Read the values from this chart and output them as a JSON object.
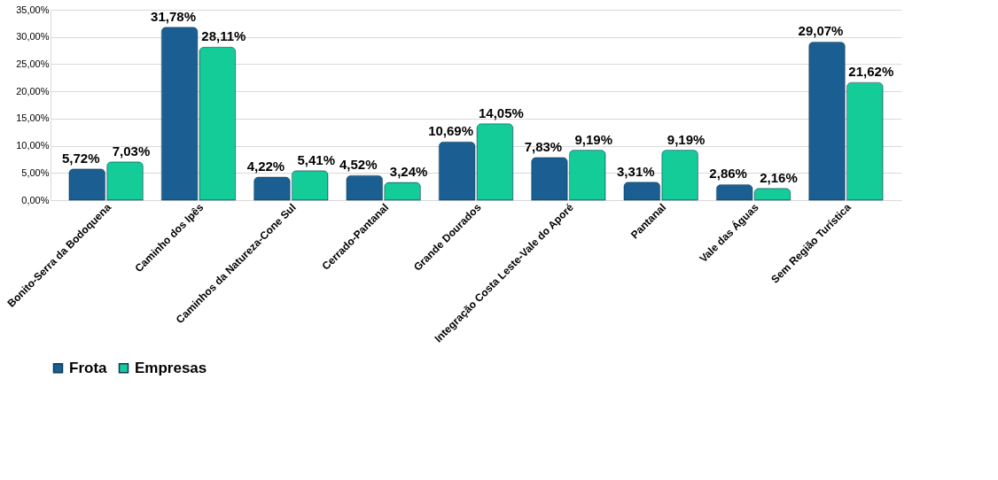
{
  "chart_data": {
    "type": "bar",
    "categories": [
      "Bonito-Serra da Bodoquena",
      "Caminho dos Ipês",
      "Caminhos da Natureza-Cone Sul",
      "Cerrado-Pantanal",
      "Grande Dourados",
      "Integração Costa Leste-Vale do Aporé",
      "Pantanal",
      "Vale das Águas",
      "Sem Região Turística"
    ],
    "series": [
      {
        "name": "Frota",
        "color": "#1b5e91",
        "values": [
          5.72,
          31.78,
          4.22,
          4.52,
          10.69,
          7.83,
          3.31,
          2.86,
          29.07
        ],
        "value_labels": [
          "5,72%",
          "31,78%",
          "4,22%",
          "4,52%",
          "10,69%",
          "7,83%",
          "3,31%",
          "2,86%",
          "29,07%"
        ]
      },
      {
        "name": "Empresas",
        "color": "#14cc98",
        "values": [
          7.03,
          28.11,
          5.41,
          3.24,
          14.05,
          9.19,
          9.19,
          2.16,
          21.62
        ],
        "value_labels": [
          "7,03%",
          "28,11%",
          "5,41%",
          "3,24%",
          "14,05%",
          "9,19%",
          "9,19%",
          "2,16%",
          "21,62%"
        ]
      }
    ],
    "ylim": [
      0,
      35
    ],
    "yticks": [
      {
        "value": 0,
        "label": "0,00%"
      },
      {
        "value": 5,
        "label": "5,00%"
      },
      {
        "value": 10,
        "label": "10,00%"
      },
      {
        "value": 15,
        "label": "15,00%"
      },
      {
        "value": 20,
        "label": "20,00%"
      },
      {
        "value": 25,
        "label": "25,00%"
      },
      {
        "value": 30,
        "label": "30,00%"
      },
      {
        "value": 35,
        "label": "35,00%"
      }
    ],
    "grid": "y",
    "legend": "bottom"
  }
}
